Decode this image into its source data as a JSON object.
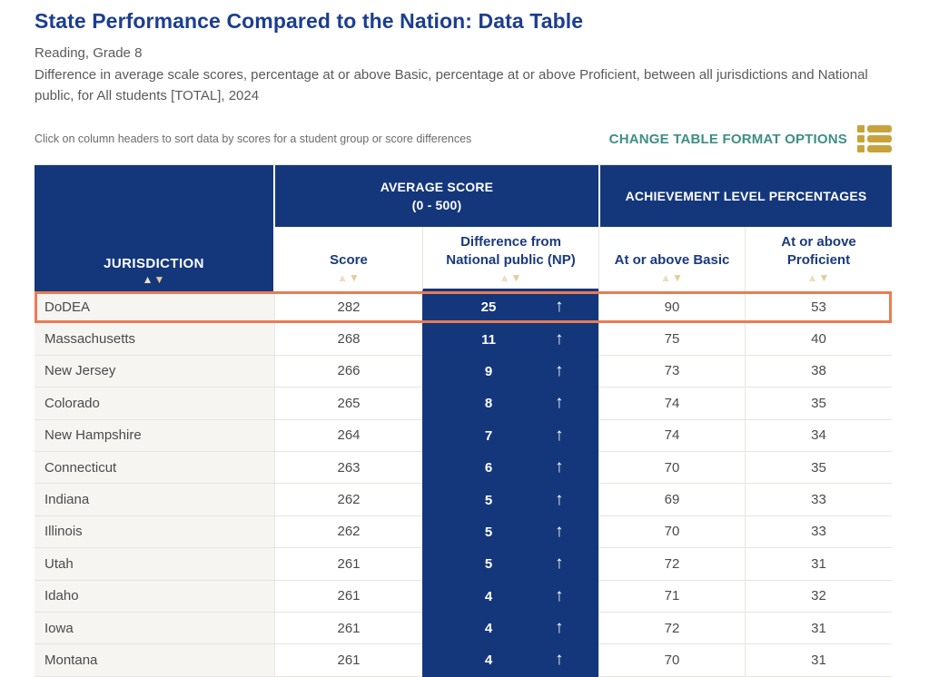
{
  "header": {
    "title": "State Performance Compared to the Nation: Data Table",
    "subtitle": "Reading, Grade 8",
    "description": "Difference in average scale scores, percentage at or above Basic, percentage at or above Proficient, between all jurisdictions and National public, for All students [TOTAL], 2024"
  },
  "toolbar": {
    "hint": "Click on column headers to sort data by scores for a student group or score differences",
    "change_format_label": "CHANGE TABLE FORMAT OPTIONS"
  },
  "icons": {
    "sort_up": "▲",
    "sort_down": "▼",
    "up_arrow": "↑",
    "table_format_icon": "list-layout"
  },
  "colors": {
    "header_navy": "#14377C",
    "title_blue": "#1C3E90",
    "highlight_orange": "#E97C52",
    "teal_link": "#3E8E86",
    "gold_icon": "#C8A33C",
    "sort_arrow_tan": "#E2CC9C"
  },
  "table": {
    "columns": {
      "jurisdiction": "JURISDICTION",
      "group_average_line1": "AVERAGE SCORE",
      "group_average_line2": "(0 - 500)",
      "group_achievement": "ACHIEVEMENT LEVEL PERCENTAGES",
      "score": "Score",
      "difference_line1": "Difference from",
      "difference_line2": "National public (NP)",
      "basic": "At or above Basic",
      "proficient_line1": "At or above",
      "proficient_line2": "Proficient"
    },
    "rows": [
      {
        "jurisdiction": "DoDEA",
        "score": 282,
        "difference": 25,
        "direction": "up",
        "basic": 90,
        "proficient": 53,
        "highlighted": true
      },
      {
        "jurisdiction": "Massachusetts",
        "score": 268,
        "difference": 11,
        "direction": "up",
        "basic": 75,
        "proficient": 40
      },
      {
        "jurisdiction": "New Jersey",
        "score": 266,
        "difference": 9,
        "direction": "up",
        "basic": 73,
        "proficient": 38
      },
      {
        "jurisdiction": "Colorado",
        "score": 265,
        "difference": 8,
        "direction": "up",
        "basic": 74,
        "proficient": 35
      },
      {
        "jurisdiction": "New Hampshire",
        "score": 264,
        "difference": 7,
        "direction": "up",
        "basic": 74,
        "proficient": 34
      },
      {
        "jurisdiction": "Connecticut",
        "score": 263,
        "difference": 6,
        "direction": "up",
        "basic": 70,
        "proficient": 35
      },
      {
        "jurisdiction": "Indiana",
        "score": 262,
        "difference": 5,
        "direction": "up",
        "basic": 69,
        "proficient": 33
      },
      {
        "jurisdiction": "Illinois",
        "score": 262,
        "difference": 5,
        "direction": "up",
        "basic": 70,
        "proficient": 33
      },
      {
        "jurisdiction": "Utah",
        "score": 261,
        "difference": 5,
        "direction": "up",
        "basic": 72,
        "proficient": 31
      },
      {
        "jurisdiction": "Idaho",
        "score": 261,
        "difference": 4,
        "direction": "up",
        "basic": 71,
        "proficient": 32
      },
      {
        "jurisdiction": "Iowa",
        "score": 261,
        "difference": 4,
        "direction": "up",
        "basic": 72,
        "proficient": 31
      },
      {
        "jurisdiction": "Montana",
        "score": 261,
        "difference": 4,
        "direction": "up",
        "basic": 70,
        "proficient": 31
      }
    ]
  }
}
